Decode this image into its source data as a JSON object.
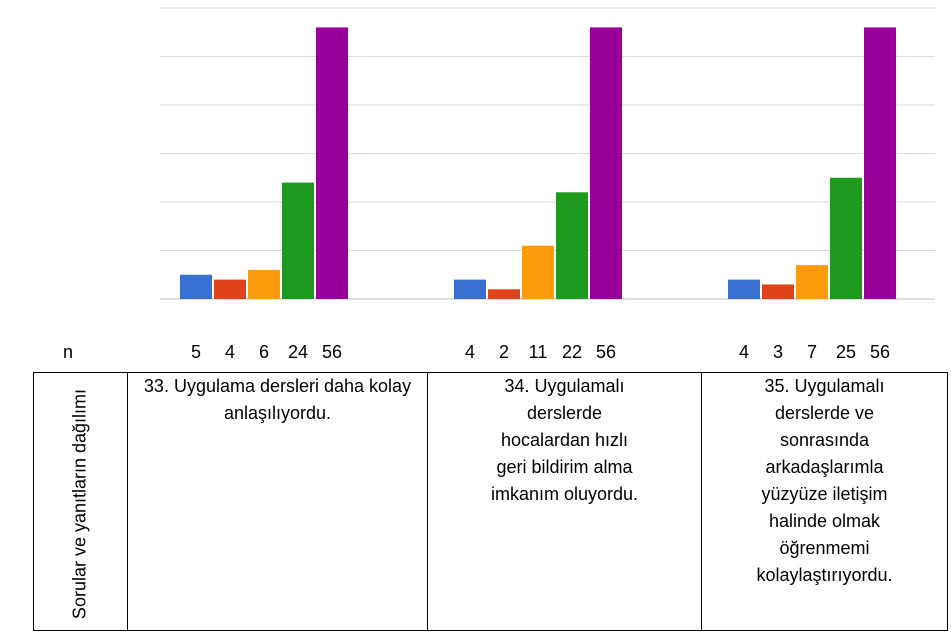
{
  "chart_data": {
    "type": "bar",
    "categories": [
      "33. Uygulama dersleri daha kolay anlaşılıyordu.",
      "34. Uygulamalı derslerde hocalardan hızlı geri bildirim alma imkanım oluyordu.",
      "35. Uygulamalı derslerde ve sonrasında arkadaşlarımla yüzyüze iletişim halinde olmak öğrenmemi kolaylaştırıyordu."
    ],
    "series": [
      {
        "color": "#3a6fd2",
        "values": [
          5,
          4,
          4
        ]
      },
      {
        "color": "#e0421a",
        "values": [
          4,
          2,
          3
        ]
      },
      {
        "color": "#ff9c0d",
        "values": [
          6,
          11,
          7
        ]
      },
      {
        "color": "#1e9a1e",
        "values": [
          24,
          22,
          25
        ]
      },
      {
        "color": "#990099",
        "values": [
          56,
          56,
          56
        ]
      }
    ],
    "ylim": [
      0,
      60
    ],
    "yticks": [
      0,
      10,
      20,
      30,
      40,
      50,
      60
    ],
    "grid": true
  },
  "n_label": "n",
  "table": {
    "header": "Sorular ve yanıtların dağılımı"
  }
}
